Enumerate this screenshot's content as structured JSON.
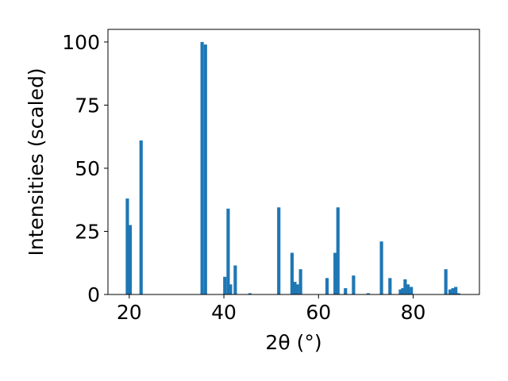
{
  "chart_data": {
    "type": "bar",
    "xlabel": "2θ (°)",
    "ylabel": "Intensities (scaled)",
    "xlim": [
      15.5,
      94.0
    ],
    "ylim": [
      0,
      105
    ],
    "bar_width": 0.7,
    "grid": false,
    "bar_color": "#1f77b4",
    "x_ticks": [
      20,
      40,
      60,
      80
    ],
    "y_ticks": [
      0,
      25,
      50,
      75,
      100
    ],
    "x": [
      19.6,
      20.2,
      22.5,
      35.4,
      36.1,
      40.2,
      40.9,
      41.4,
      42.4,
      45.5,
      51.6,
      54.4,
      55.0,
      55.5,
      56.2,
      61.8,
      63.5,
      64.1,
      65.7,
      67.4,
      70.5,
      73.3,
      75.1,
      77.3,
      77.8,
      78.3,
      78.9,
      79.6,
      86.9,
      87.8,
      88.4,
      89.0,
      89.6
    ],
    "values": [
      38,
      27.5,
      61,
      100,
      99,
      7,
      34,
      4,
      11.5,
      0.5,
      34.5,
      16.5,
      5,
      4,
      10,
      6.5,
      16.5,
      34.5,
      2.5,
      7.5,
      0.5,
      21,
      6.5,
      2,
      2.5,
      6,
      4,
      3,
      10,
      2,
      2.5,
      3,
      0.5
    ]
  }
}
